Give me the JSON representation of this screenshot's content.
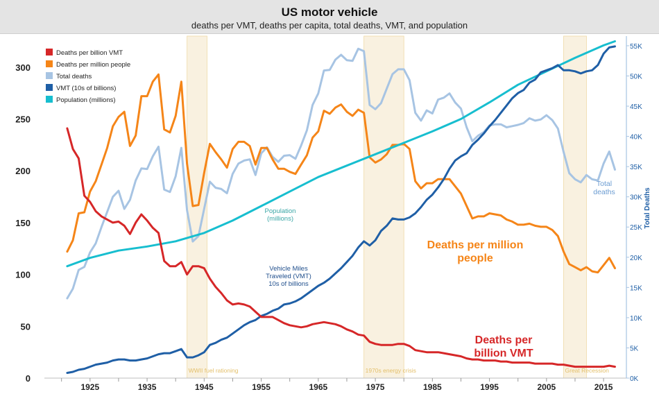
{
  "header": {
    "title": "US motor vehicle",
    "subtitle": "deaths per VMT, deaths per capita, total deaths, VMT, and population"
  },
  "chart_data": {
    "type": "line",
    "x_ticks": [
      1925,
      1935,
      1945,
      1955,
      1965,
      1975,
      1985,
      1995,
      2005,
      2015
    ],
    "xlim": [
      1917,
      2019
    ],
    "y_left": {
      "ticks": [
        0,
        50,
        100,
        150,
        200,
        250,
        300
      ],
      "lim": [
        0,
        330
      ]
    },
    "y_right": {
      "label": "Total Deaths",
      "ticks": [
        0,
        5000,
        10000,
        15000,
        20000,
        25000,
        30000,
        35000,
        40000,
        45000,
        50000,
        55000
      ],
      "tick_labels": [
        "0K",
        "5K",
        "10K",
        "15K",
        "20K",
        "25K",
        "30K",
        "35K",
        "40K",
        "45K",
        "50K",
        "55K"
      ],
      "lim": [
        0,
        56600
      ]
    },
    "legend_position": "top-left",
    "legend": [
      {
        "label": "Deaths per billion VMT",
        "color": "#d62728"
      },
      {
        "label": "Deaths per million people",
        "color": "#f58518"
      },
      {
        "label": "Total deaths",
        "color": "#a7c4e3"
      },
      {
        "label": "VMT (10s of billions)",
        "color": "#1f5fa6"
      },
      {
        "label": "Population (millions)",
        "color": "#17becf"
      }
    ],
    "shaded_periods": [
      {
        "start": 1942,
        "end": 1945.5,
        "label": "WWII fuel rationing"
      },
      {
        "start": 1973,
        "end": 1980,
        "label": "1970s energy crisis"
      },
      {
        "start": 2008,
        "end": 2012,
        "label": "Great Recession"
      }
    ],
    "annotations": {
      "population": [
        "Population",
        "(millions)"
      ],
      "vmt": [
        "Vehicle Miles",
        "Traveled (VMT)",
        "10s of billions"
      ],
      "deaths_per_million": [
        "Deaths per million",
        "people"
      ],
      "deaths_per_vmt": [
        "Deaths per",
        "billion VMT"
      ],
      "total_deaths": [
        "Total",
        "deaths"
      ]
    },
    "series": [
      {
        "name": "Total deaths",
        "axis": "right",
        "color": "#a7c4e3",
        "x": [
          1921,
          1922,
          1923,
          1924,
          1925,
          1926,
          1927,
          1928,
          1929,
          1930,
          1931,
          1932,
          1933,
          1934,
          1935,
          1936,
          1937,
          1938,
          1939,
          1940,
          1941,
          1942,
          1943,
          1944,
          1945,
          1946,
          1947,
          1948,
          1949,
          1950,
          1951,
          1952,
          1953,
          1954,
          1955,
          1956,
          1957,
          1958,
          1959,
          1960,
          1961,
          1962,
          1963,
          1964,
          1965,
          1966,
          1967,
          1968,
          1969,
          1970,
          1971,
          1972,
          1973,
          1974,
          1975,
          1976,
          1977,
          1978,
          1979,
          1980,
          1981,
          1982,
          1983,
          1984,
          1985,
          1986,
          1987,
          1988,
          1989,
          1990,
          1991,
          1992,
          1993,
          1994,
          1995,
          1996,
          1997,
          1998,
          1999,
          2000,
          2001,
          2002,
          2003,
          2004,
          2005,
          2006,
          2007,
          2008,
          2009,
          2010,
          2011,
          2012,
          2013,
          2014,
          2015,
          2016,
          2017
        ],
        "values": [
          13200,
          14800,
          17900,
          18400,
          20800,
          22300,
          25000,
          27500,
          30000,
          31000,
          28000,
          29500,
          32700,
          34700,
          34600,
          36700,
          38300,
          31200,
          30800,
          33400,
          38100,
          27800,
          22600,
          23500,
          28000,
          32500,
          31500,
          31300,
          30600,
          33800,
          35500,
          36000,
          36200,
          33600,
          37200,
          38200,
          36600,
          35800,
          36800,
          36900,
          36300,
          38500,
          41000,
          45200,
          47100,
          50900,
          51000,
          52700,
          53500,
          52600,
          52500,
          54500,
          54100,
          45200,
          44500,
          45500,
          47900,
          50300,
          51100,
          51100,
          49300,
          43900,
          42600,
          44300,
          43800,
          46100,
          46400,
          47100,
          45600,
          44600,
          41500,
          39200,
          40100,
          40700,
          41800,
          42000,
          42000,
          41500,
          41700,
          41900,
          42200,
          43000,
          42600,
          42800,
          43500,
          42700,
          41300,
          37400,
          33900,
          32900,
          32400,
          33600,
          32900,
          32700,
          35500,
          37500,
          34500
        ]
      },
      {
        "name": "Deaths per million people",
        "axis": "left",
        "color": "#f58518",
        "x": [
          1921,
          1922,
          1923,
          1924,
          1925,
          1926,
          1927,
          1928,
          1929,
          1930,
          1931,
          1932,
          1933,
          1934,
          1935,
          1936,
          1937,
          1938,
          1939,
          1940,
          1941,
          1942,
          1943,
          1944,
          1945,
          1946,
          1947,
          1948,
          1949,
          1950,
          1951,
          1952,
          1953,
          1954,
          1955,
          1956,
          1957,
          1958,
          1959,
          1960,
          1961,
          1962,
          1963,
          1964,
          1965,
          1966,
          1967,
          1968,
          1969,
          1970,
          1971,
          1972,
          1973,
          1974,
          1975,
          1976,
          1977,
          1978,
          1979,
          1980,
          1981,
          1982,
          1983,
          1984,
          1985,
          1986,
          1987,
          1988,
          1989,
          1990,
          1991,
          1992,
          1993,
          1994,
          1995,
          1996,
          1997,
          1998,
          1999,
          2000,
          2001,
          2002,
          2003,
          2004,
          2005,
          2006,
          2007,
          2008,
          2009,
          2010,
          2011,
          2012,
          2013,
          2014,
          2015,
          2016,
          2017
        ],
        "values": [
          122,
          133,
          159,
          160,
          180,
          190,
          206,
          222,
          243,
          252,
          257,
          224,
          234,
          272,
          272,
          286,
          293,
          240,
          237,
          253,
          286,
          207,
          166,
          167,
          198,
          226,
          218,
          211,
          203,
          221,
          228,
          228,
          224,
          206,
          222,
          222,
          211,
          202,
          202,
          199,
          197,
          206,
          215,
          232,
          238,
          258,
          255,
          261,
          264,
          257,
          253,
          259,
          256,
          213,
          208,
          211,
          216,
          225,
          225,
          226,
          221,
          190,
          183,
          188,
          188,
          192,
          192,
          192,
          185,
          178,
          166,
          154,
          156,
          156,
          159,
          158,
          157,
          153,
          151,
          148,
          148,
          149,
          147,
          146,
          146,
          143,
          137,
          122,
          110,
          107,
          104,
          107,
          103,
          102,
          109,
          116,
          106
        ]
      },
      {
        "name": "Population (millions)",
        "axis": "left",
        "color": "#17becf",
        "x": [
          1921,
          1925,
          1930,
          1935,
          1940,
          1945,
          1950,
          1955,
          1960,
          1965,
          1970,
          1975,
          1980,
          1985,
          1990,
          1995,
          2000,
          2005,
          2010,
          2015,
          2017
        ],
        "values": [
          108,
          116,
          123,
          127,
          132,
          140,
          152,
          166,
          180,
          194,
          205,
          216,
          227,
          238,
          250,
          266,
          283,
          296,
          309,
          321,
          325
        ]
      },
      {
        "name": "VMT (10s of billions)",
        "axis": "left",
        "color": "#1f5fa6",
        "x": [
          1921,
          1922,
          1923,
          1924,
          1925,
          1926,
          1927,
          1928,
          1929,
          1930,
          1931,
          1932,
          1933,
          1934,
          1935,
          1936,
          1937,
          1938,
          1939,
          1940,
          1941,
          1942,
          1943,
          1944,
          1945,
          1946,
          1947,
          1948,
          1949,
          1950,
          1951,
          1952,
          1953,
          1954,
          1955,
          1956,
          1957,
          1958,
          1959,
          1960,
          1961,
          1962,
          1963,
          1964,
          1965,
          1966,
          1967,
          1968,
          1969,
          1970,
          1971,
          1972,
          1973,
          1974,
          1975,
          1976,
          1977,
          1978,
          1979,
          1980,
          1981,
          1982,
          1983,
          1984,
          1985,
          1986,
          1987,
          1988,
          1989,
          1990,
          1991,
          1992,
          1993,
          1994,
          1995,
          1996,
          1997,
          1998,
          1999,
          2000,
          2001,
          2002,
          2003,
          2004,
          2005,
          2006,
          2007,
          2008,
          2009,
          2010,
          2011,
          2012,
          2013,
          2014,
          2015,
          2016,
          2017
        ],
        "values": [
          5,
          6,
          8,
          9,
          11,
          13,
          14,
          15,
          17,
          18,
          18,
          17,
          17,
          18,
          19,
          21,
          23,
          24,
          24,
          26,
          28,
          20,
          20,
          22,
          25,
          32,
          34,
          37,
          39,
          43,
          47,
          51,
          54,
          56,
          60,
          62,
          65,
          67,
          71,
          72,
          74,
          77,
          81,
          85,
          89,
          92,
          96,
          101,
          106,
          112,
          118,
          126,
          132,
          128,
          133,
          142,
          147,
          154,
          153,
          153,
          155,
          159,
          165,
          172,
          177,
          184,
          192,
          202,
          210,
          214,
          217,
          225,
          230,
          236,
          243,
          249,
          256,
          263,
          270,
          275,
          278,
          285,
          288,
          295,
          297,
          299,
          302,
          297,
          297,
          296,
          294,
          296,
          297,
          302,
          313,
          319,
          320
        ]
      },
      {
        "name": "Deaths per billion VMT",
        "axis": "left",
        "color": "#d62728",
        "x": [
          1921,
          1922,
          1923,
          1924,
          1925,
          1926,
          1927,
          1928,
          1929,
          1930,
          1931,
          1932,
          1933,
          1934,
          1935,
          1936,
          1937,
          1938,
          1939,
          1940,
          1941,
          1942,
          1943,
          1944,
          1945,
          1946,
          1947,
          1948,
          1949,
          1950,
          1951,
          1952,
          1953,
          1954,
          1955,
          1956,
          1957,
          1958,
          1959,
          1960,
          1961,
          1962,
          1963,
          1964,
          1965,
          1966,
          1967,
          1968,
          1969,
          1970,
          1971,
          1972,
          1973,
          1974,
          1975,
          1976,
          1977,
          1978,
          1979,
          1980,
          1981,
          1982,
          1983,
          1984,
          1985,
          1986,
          1987,
          1988,
          1989,
          1990,
          1991,
          1992,
          1993,
          1994,
          1995,
          1996,
          1997,
          1998,
          1999,
          2000,
          2001,
          2002,
          2003,
          2004,
          2005,
          2006,
          2007,
          2008,
          2009,
          2010,
          2011,
          2012,
          2013,
          2014,
          2015,
          2016,
          2017
        ],
        "values": [
          241,
          221,
          212,
          176,
          170,
          161,
          156,
          153,
          150,
          151,
          147,
          139,
          150,
          158,
          152,
          145,
          140,
          113,
          108,
          108,
          112,
          100,
          108,
          108,
          106,
          96,
          88,
          82,
          75,
          71,
          72,
          71,
          69,
          64,
          59,
          59,
          59,
          56,
          53,
          51,
          50,
          49,
          50,
          52,
          53,
          54,
          53,
          52,
          50,
          47,
          45,
          42,
          41,
          35,
          33,
          32,
          32,
          32,
          33,
          33,
          31,
          27,
          26,
          25,
          25,
          25,
          24,
          23,
          22,
          21,
          19,
          18,
          18,
          17,
          17,
          17,
          16,
          16,
          15,
          15,
          15,
          15,
          14,
          14,
          14,
          14,
          13,
          13,
          12,
          11,
          11,
          11,
          11,
          11,
          11,
          12,
          11
        ]
      }
    ]
  }
}
